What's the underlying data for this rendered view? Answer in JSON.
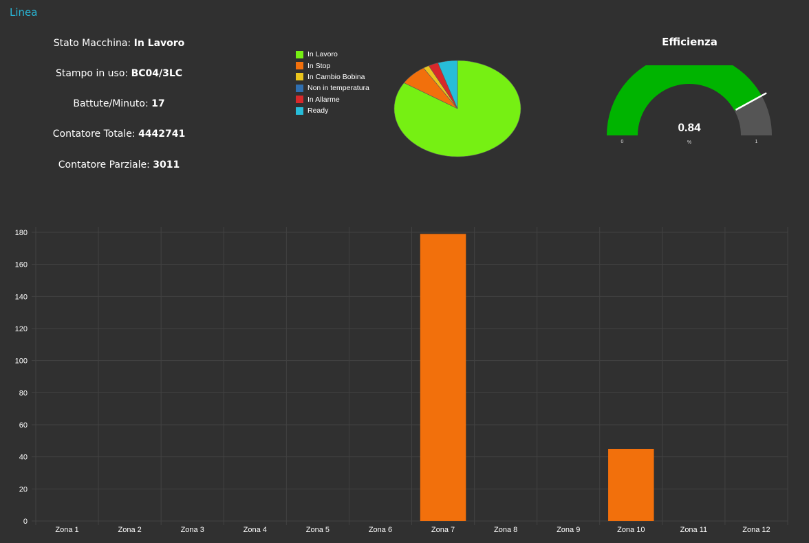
{
  "header": {
    "title": "Linea"
  },
  "info": {
    "stato_label": "Stato Macchina: ",
    "stato_value": "In Lavoro",
    "stampo_label": "Stampo in uso: ",
    "stampo_value": "BC04/3LC",
    "battute_label": "Battute/Minuto: ",
    "battute_value": "17",
    "totale_label": "Contatore Totale: ",
    "totale_value": "4442741",
    "parziale_label": "Contatore Parziale: ",
    "parziale_value": "3011"
  },
  "pie": {
    "legend": [
      {
        "label": "In Lavoro",
        "color": "#76f013"
      },
      {
        "label": "In Stop",
        "color": "#f2700c"
      },
      {
        "label": "In Cambio Bobina",
        "color": "#eac51d"
      },
      {
        "label": "Non in temperatura",
        "color": "#2f6fb0"
      },
      {
        "label": "In Allarme",
        "color": "#d8282a"
      },
      {
        "label": "Ready",
        "color": "#27bdd9"
      }
    ]
  },
  "gauge": {
    "title": "Efficienza",
    "value": 0.84,
    "value_text": "0.84",
    "unit": "%",
    "min_label": "0",
    "max_label": "1",
    "fill_color": "#00b400",
    "track_color": "#555555"
  },
  "chart_data": [
    {
      "type": "pie",
      "categories": [
        "In Lavoro",
        "In Stop",
        "In Cambio Bobina",
        "Non in temperatura",
        "In Allarme",
        "Ready"
      ],
      "values": [
        84,
        7,
        1.5,
        0,
        2.5,
        5
      ]
    },
    {
      "type": "bar",
      "categories": [
        "Zona 1",
        "Zona 2",
        "Zona 3",
        "Zona 4",
        "Zona 5",
        "Zona 6",
        "Zona 7",
        "Zona 8",
        "Zona 9",
        "Zona 10",
        "Zona 11",
        "Zona 12"
      ],
      "values": [
        0,
        0,
        0,
        0,
        0,
        0,
        179,
        0,
        0,
        45,
        0,
        0
      ],
      "yticks": [
        "0",
        "20",
        "40",
        "60",
        "80",
        "100",
        "120",
        "140",
        "160",
        "180"
      ],
      "ylim": [
        0,
        180
      ],
      "bar_color": "#f2700c",
      "grid": true
    }
  ]
}
